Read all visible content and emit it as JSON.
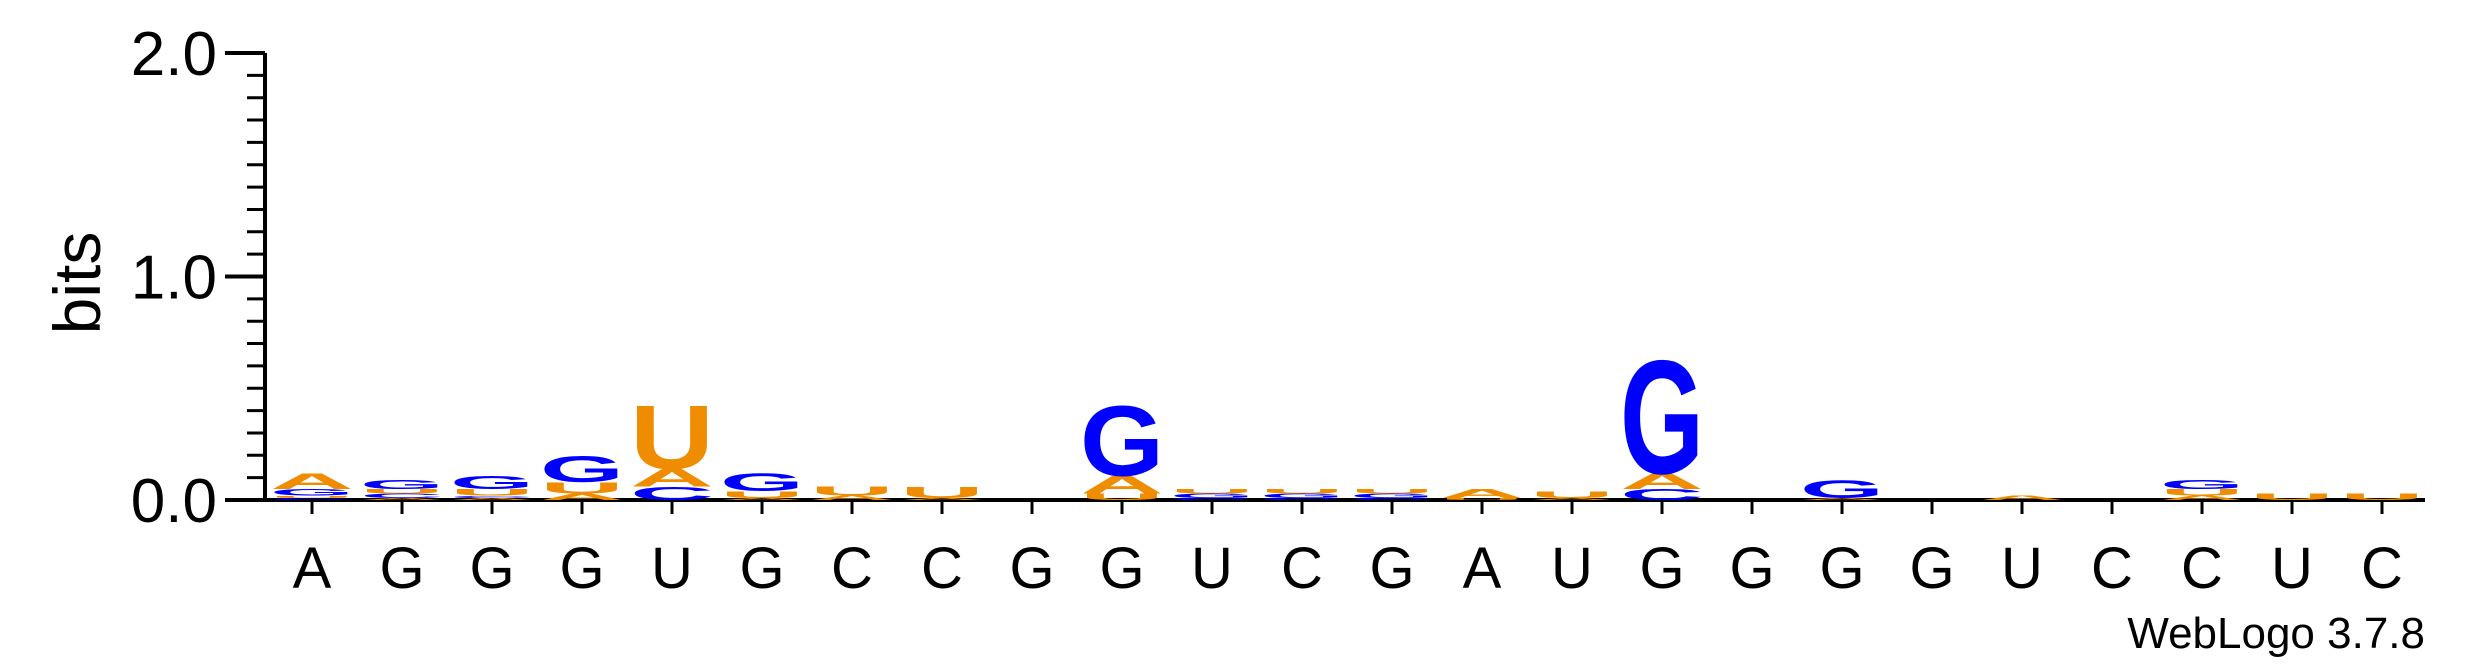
{
  "chart_data": {
    "type": "sequence_logo",
    "ylabel": "bits",
    "ylim": [
      0,
      2.0
    ],
    "y_ticks": [
      "0.0",
      "1.0",
      "2.0"
    ],
    "y_tick_values": [
      0,
      1,
      2
    ],
    "x_categories": [
      "A",
      "G",
      "G",
      "G",
      "U",
      "G",
      "C",
      "C",
      "G",
      "G",
      "U",
      "C",
      "G",
      "A",
      "U",
      "G",
      "G",
      "G",
      "G",
      "U",
      "C",
      "C",
      "U",
      "C"
    ],
    "credit": "WebLogo 3.7.8",
    "colors": {
      "A": "#f08c00",
      "U": "#f08c00",
      "G": "#0000ff",
      "C": "#0000ff"
    },
    "letter_heights_bits": [
      [
        [
          "C",
          0.01
        ],
        [
          "U",
          0.01
        ],
        [
          "G",
          0.03
        ],
        [
          "A",
          0.07
        ]
      ],
      [
        [
          "A",
          0.01
        ],
        [
          "C",
          0.02
        ],
        [
          "U",
          0.02
        ],
        [
          "G",
          0.04
        ]
      ],
      [
        [
          "A",
          0.01
        ],
        [
          "C",
          0.01
        ],
        [
          "U",
          0.03
        ],
        [
          "G",
          0.06
        ]
      ],
      [
        [
          "A",
          0.03
        ],
        [
          "U",
          0.05
        ],
        [
          "G",
          0.12
        ]
      ],
      [
        [
          "C",
          0.06
        ],
        [
          "A",
          0.08
        ],
        [
          "U",
          0.29
        ]
      ],
      [
        [
          "A",
          0.01
        ],
        [
          "U",
          0.03
        ],
        [
          "G",
          0.08
        ]
      ],
      [
        [
          "A",
          0.02
        ],
        [
          "U",
          0.04
        ]
      ],
      [
        [
          "A",
          0.01
        ],
        [
          "U",
          0.05
        ]
      ],
      [],
      [
        [
          "U",
          0.03
        ],
        [
          "A",
          0.08
        ],
        [
          "G",
          0.32
        ]
      ],
      [
        [
          "C",
          0.01
        ],
        [
          "G",
          0.02
        ],
        [
          "U",
          0.02
        ]
      ],
      [
        [
          "C",
          0.01
        ],
        [
          "G",
          0.02
        ],
        [
          "U",
          0.02
        ]
      ],
      [
        [
          "C",
          0.01
        ],
        [
          "G",
          0.02
        ],
        [
          "U",
          0.02
        ]
      ],
      [
        [
          "U",
          0.01
        ],
        [
          "A",
          0.04
        ]
      ],
      [
        [
          "A",
          0.01
        ],
        [
          "U",
          0.03
        ]
      ],
      [
        [
          "C",
          0.05
        ],
        [
          "A",
          0.07
        ],
        [
          "G",
          0.52
        ]
      ],
      [],
      [
        [
          "A",
          0.01
        ],
        [
          "G",
          0.08
        ]
      ],
      [],
      [
        [
          "A",
          0.02
        ]
      ],
      [],
      [
        [
          "A",
          0.02
        ],
        [
          "U",
          0.03
        ],
        [
          "G",
          0.04
        ]
      ],
      [
        [
          "U",
          0.03
        ]
      ],
      [
        [
          "U",
          0.03
        ]
      ]
    ]
  }
}
